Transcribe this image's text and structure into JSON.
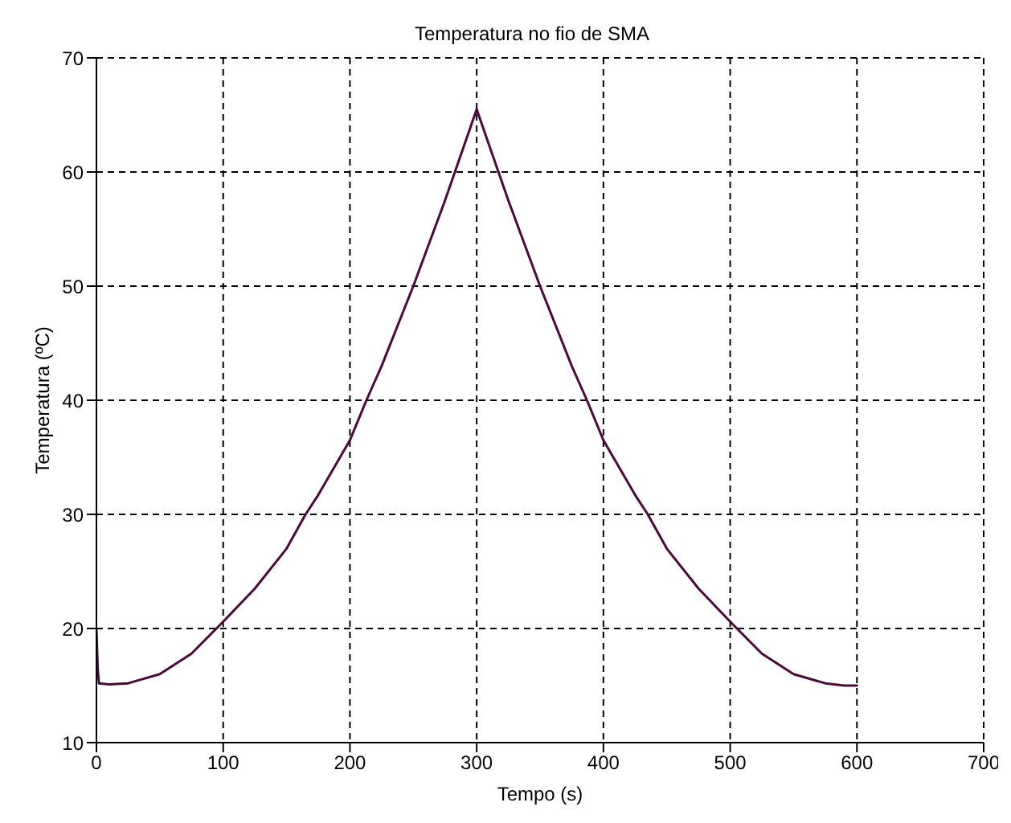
{
  "chart_data": {
    "type": "line",
    "title": "Temperatura no fio de SMA",
    "xlabel": "Tempo (s)",
    "ylabel": "Temperatura (ºC)",
    "xlim": [
      0,
      700
    ],
    "xticks": [
      0,
      100,
      200,
      300,
      400,
      500,
      600,
      700
    ],
    "ylim": [
      10,
      70
    ],
    "yticks": [
      10,
      20,
      30,
      40,
      50,
      60,
      70
    ],
    "grid": true,
    "legend": false,
    "marker": "none",
    "line_style": "solid",
    "series": [
      {
        "color": "#4b0a3c",
        "x": [
          0,
          1,
          2,
          10,
          25,
          50,
          75,
          100,
          125,
          150,
          165,
          175,
          200,
          213,
          225,
          250,
          275,
          300,
          325,
          350,
          375,
          387,
          400,
          425,
          435,
          450,
          475,
          500,
          525,
          550,
          575,
          590,
          600
        ],
        "values": [
          20,
          16.5,
          15.2,
          15.1,
          15.2,
          16,
          17.8,
          20.6,
          23.5,
          27,
          30,
          31.7,
          36.5,
          40,
          43,
          50,
          57.5,
          65.5,
          57.5,
          50,
          43,
          40,
          36.5,
          31.7,
          30,
          27,
          23.5,
          20.6,
          17.8,
          16,
          15.2,
          15,
          15
        ]
      }
    ]
  }
}
